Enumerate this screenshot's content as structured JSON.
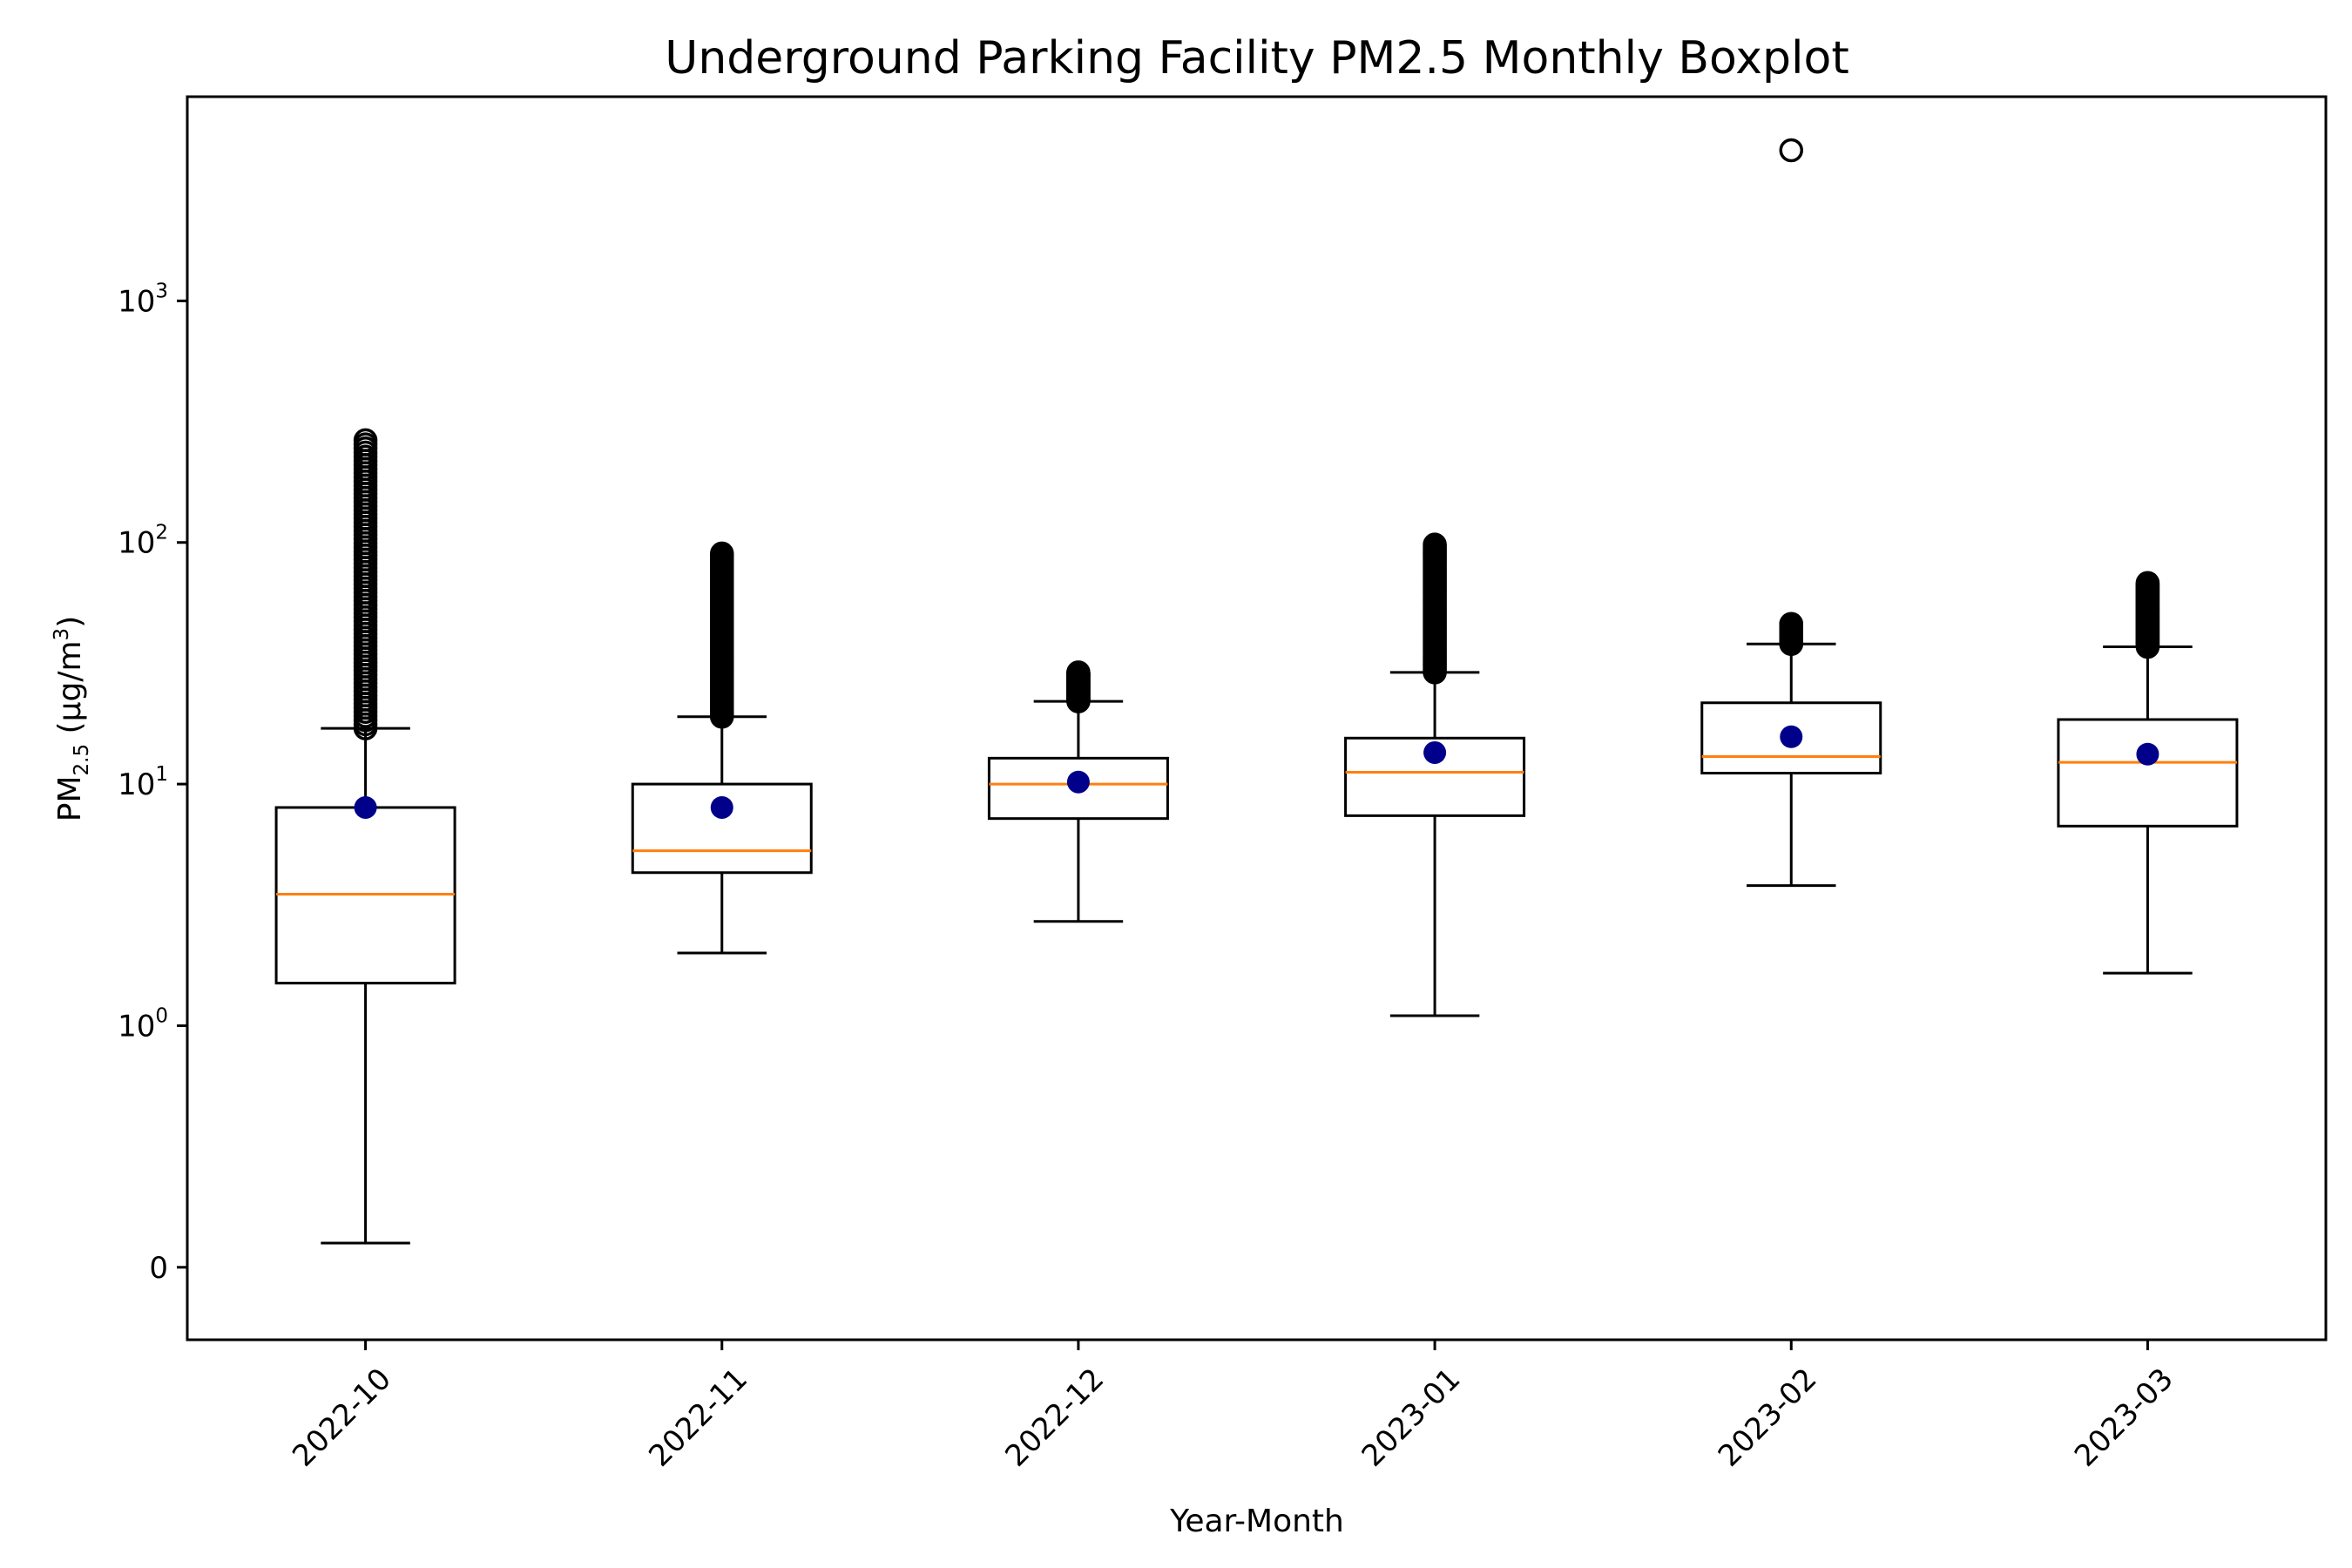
{
  "chart_data": {
    "type": "boxplot",
    "title": "Underground Parking Facility PM2.5 Monthly Boxplot",
    "xlabel": "Year-Month",
    "ylabel": {
      "base": "PM",
      "sub": "2.5",
      "unit_prefix": " (μg/m",
      "unit_sup": "3",
      "unit_suffix": ")"
    },
    "yscale": "symlog",
    "ylim": [
      -0.3,
      7000
    ],
    "yticks": [
      {
        "value": 0,
        "base": "0",
        "exp": ""
      },
      {
        "value": 1,
        "base": "10",
        "exp": "0"
      },
      {
        "value": 10,
        "base": "10",
        "exp": "1"
      },
      {
        "value": 100,
        "base": "10",
        "exp": "2"
      },
      {
        "value": 1000,
        "base": "10",
        "exp": "3"
      }
    ],
    "categories": [
      "2022-10",
      "2022-11",
      "2022-12",
      "2023-01",
      "2023-02",
      "2023-03"
    ],
    "boxes": [
      {
        "label": "2022-10",
        "whisker_low": 0.1,
        "q1": 1.5,
        "median": 3.5,
        "q3": 8.0,
        "whisker_high": 17,
        "mean": 8.0,
        "outliers_min": 17,
        "outliers_max": 265
      },
      {
        "label": "2022-11",
        "whisker_low": 2.0,
        "q1": 4.3,
        "median": 5.3,
        "q3": 10.0,
        "whisker_high": 19,
        "mean": 8.0,
        "outliers_min": 19,
        "outliers_max": 90
      },
      {
        "label": "2022-12",
        "whisker_low": 2.7,
        "q1": 7.2,
        "median": 10.0,
        "q3": 12.8,
        "whisker_high": 22,
        "mean": 10.2,
        "outliers_min": 22,
        "outliers_max": 29
      },
      {
        "label": "2023-01",
        "whisker_low": 1.1,
        "q1": 7.4,
        "median": 11.2,
        "q3": 15.5,
        "whisker_high": 29,
        "mean": 13.5,
        "outliers_min": 29,
        "outliers_max": 98
      },
      {
        "label": "2023-02",
        "whisker_low": 3.8,
        "q1": 11.1,
        "median": 13.0,
        "q3": 21.7,
        "whisker_high": 38,
        "mean": 15.7,
        "outliers_min": 38,
        "outliers_max": 46,
        "extra_outliers": [
          4200
        ]
      },
      {
        "label": "2023-03",
        "whisker_low": 1.65,
        "q1": 6.7,
        "median": 12.3,
        "q3": 18.5,
        "whisker_high": 37,
        "mean": 13.3,
        "outliers_min": 37,
        "outliers_max": 68
      }
    ],
    "colors": {
      "box": "#000000",
      "median": "#ff7f0e",
      "mean": "#00008b",
      "outlier": "#000000"
    },
    "grid": false,
    "legend": "none"
  }
}
